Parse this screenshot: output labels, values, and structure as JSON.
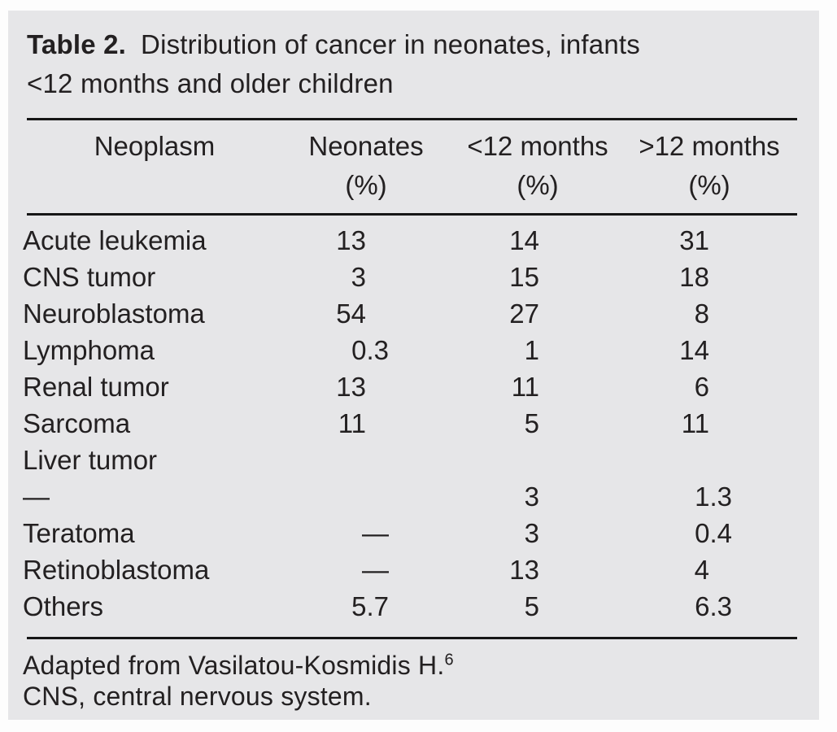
{
  "title": {
    "label": "Table 2.",
    "line1": "Distribution of cancer in neonates, infants",
    "line2": "<12 months and older children"
  },
  "header": {
    "col1": "Neoplasm",
    "col2": "Neonates",
    "col3": "<12 months",
    "col4": ">12 months",
    "pct": "(%)"
  },
  "rows": [
    {
      "name": "Acute leukemia",
      "neonates": "13",
      "under12": "14",
      "over12": "31"
    },
    {
      "name": "CNS tumor",
      "neonates": "3",
      "under12": "15",
      "over12": "18"
    },
    {
      "name": "Neuroblastoma",
      "neonates": "54",
      "under12": "27",
      "over12": "8"
    },
    {
      "name": "Lymphoma",
      "neonates": "0.3",
      "under12": "1",
      "over12": "14"
    },
    {
      "name": "Renal tumor",
      "neonates": "13",
      "under12": "11",
      "over12": "6"
    },
    {
      "name": "Sarcoma",
      "neonates": "11",
      "under12": "5",
      "over12": "11"
    },
    {
      "name": "Liver tumor",
      "neonates": "",
      "under12": "",
      "over12": ""
    },
    {
      "name": "—",
      "neonates": "",
      "under12": "3",
      "over12": "1.3"
    },
    {
      "name": "Teratoma",
      "neonates": "—",
      "under12": "3",
      "over12": "0.4"
    },
    {
      "name": "Retinoblastoma",
      "neonates": "—",
      "under12": "13",
      "over12": "4"
    },
    {
      "name": "Others",
      "neonates": "5.7",
      "under12": "5",
      "over12": "6.3"
    }
  ],
  "footnotes": {
    "line1": "Adapted from Vasilatou-Kosmidis H.",
    "line1_sup": "6",
    "line2": "CNS, central nervous system."
  },
  "colors": {
    "panel_background": "#e6e6e8",
    "text": "#232021",
    "rule": "#161616"
  }
}
